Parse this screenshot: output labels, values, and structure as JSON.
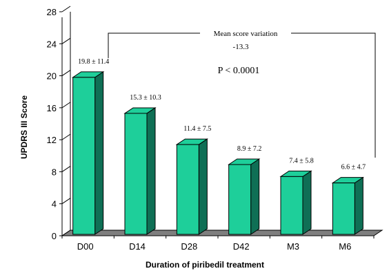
{
  "chart_data": {
    "type": "bar",
    "categories": [
      "D00",
      "D14",
      "D28",
      "D42",
      "M3",
      "M6"
    ],
    "values": [
      19.8,
      15.3,
      11.4,
      8.9,
      7.4,
      6.6
    ],
    "data_labels": [
      "19.8 ± 11.4",
      "15.3 ± 10.3",
      "11.4 ± 7.5",
      "8.9 ± 7.2",
      "7.4 ± 5.8",
      "6.6 ± 4.7"
    ],
    "title": "",
    "xlabel": "Duration of piribedil treatment",
    "ylabel": "UPDRS III Score",
    "ylim": [
      0,
      28
    ],
    "yticks": [
      0,
      4,
      8,
      12,
      16,
      20,
      24,
      28
    ],
    "grid": false,
    "style": "3d",
    "bar_color": "#1ecf9a",
    "bar_side_color": "#0f6f55",
    "floor_color": "#7f7f7f",
    "annotations": {
      "bracket_label": "Mean score variation",
      "bracket_value": "-13.3",
      "p_value": "P < 0.0001"
    }
  }
}
